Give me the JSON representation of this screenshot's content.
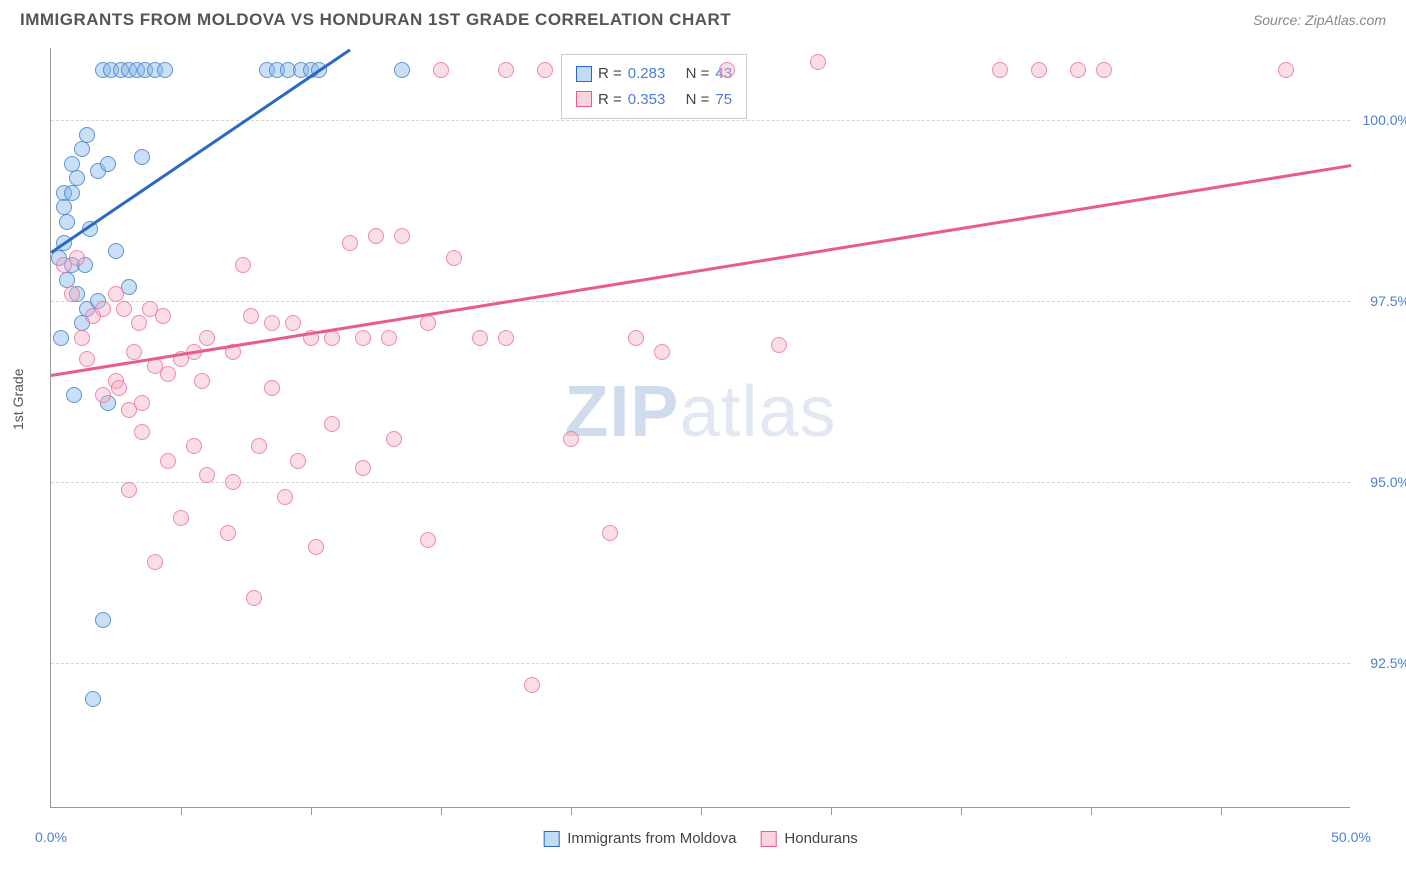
{
  "header": {
    "title": "IMMIGRANTS FROM MOLDOVA VS HONDURAN 1ST GRADE CORRELATION CHART",
    "source": "Source: ZipAtlas.com"
  },
  "watermark": {
    "part1": "ZIP",
    "part2": "atlas"
  },
  "chart": {
    "type": "scatter",
    "ylabel": "1st Grade",
    "xlim": [
      0,
      50
    ],
    "ylim": [
      90.5,
      101
    ],
    "background_color": "#ffffff",
    "grid_color": "#d5d5d5",
    "yticks": [
      {
        "v": 92.5,
        "label": "92.5%"
      },
      {
        "v": 95.0,
        "label": "95.0%"
      },
      {
        "v": 97.5,
        "label": "97.5%"
      },
      {
        "v": 100.0,
        "label": "100.0%"
      }
    ],
    "xticks_minor": [
      5,
      10,
      15,
      20,
      25,
      30,
      35,
      40,
      45
    ],
    "xticks_labeled": [
      {
        "v": 0,
        "label": "0.0%"
      },
      {
        "v": 50,
        "label": "50.0%"
      }
    ],
    "series": [
      {
        "name": "Immigrants from Moldova",
        "color_fill": "rgba(135,185,235,0.45)",
        "color_stroke": "#2b68c5",
        "marker_radius": 8,
        "trend": {
          "x1": 0,
          "y1": 98.2,
          "x2": 11.5,
          "y2": 101
        },
        "stats": {
          "R": "0.283",
          "N": "43"
        },
        "points": [
          [
            0.3,
            98.1
          ],
          [
            0.5,
            98.3
          ],
          [
            0.6,
            98.6
          ],
          [
            0.5,
            99.0
          ],
          [
            0.8,
            99.4
          ],
          [
            1.0,
            99.2
          ],
          [
            1.2,
            99.6
          ],
          [
            1.4,
            99.8
          ],
          [
            2.0,
            100.7
          ],
          [
            2.3,
            100.7
          ],
          [
            2.7,
            100.7
          ],
          [
            3.0,
            100.7
          ],
          [
            3.3,
            100.7
          ],
          [
            3.6,
            100.7
          ],
          [
            4.0,
            100.7
          ],
          [
            4.4,
            100.7
          ],
          [
            8.3,
            100.7
          ],
          [
            8.7,
            100.7
          ],
          [
            9.1,
            100.7
          ],
          [
            9.6,
            100.7
          ],
          [
            10.0,
            100.7
          ],
          [
            10.3,
            100.7
          ],
          [
            13.5,
            100.7
          ],
          [
            0.6,
            97.8
          ],
          [
            0.8,
            98.0
          ],
          [
            1.3,
            98.0
          ],
          [
            1.0,
            97.6
          ],
          [
            1.4,
            97.4
          ],
          [
            1.8,
            97.5
          ],
          [
            0.4,
            97.0
          ],
          [
            0.9,
            96.2
          ],
          [
            2.2,
            96.1
          ],
          [
            1.8,
            99.3
          ],
          [
            2.2,
            99.4
          ],
          [
            3.5,
            99.5
          ],
          [
            0.5,
            98.8
          ],
          [
            0.8,
            99.0
          ],
          [
            1.5,
            98.5
          ],
          [
            2.5,
            98.2
          ],
          [
            3.0,
            97.7
          ],
          [
            2.0,
            93.1
          ],
          [
            1.6,
            92.0
          ],
          [
            1.2,
            97.2
          ]
        ]
      },
      {
        "name": "Hondurans",
        "color_fill": "rgba(245,170,195,0.4)",
        "color_stroke": "#ea5b8a",
        "marker_radius": 8,
        "trend": {
          "x1": 0,
          "y1": 96.5,
          "x2": 50,
          "y2": 99.4
        },
        "stats": {
          "R": "0.353",
          "N": "75"
        },
        "points": [
          [
            0.5,
            98.0
          ],
          [
            1.0,
            98.1
          ],
          [
            1.6,
            97.3
          ],
          [
            2.0,
            97.4
          ],
          [
            2.5,
            97.6
          ],
          [
            2.8,
            97.4
          ],
          [
            3.4,
            97.2
          ],
          [
            3.8,
            97.4
          ],
          [
            4.3,
            97.3
          ],
          [
            1.4,
            96.7
          ],
          [
            2.0,
            96.2
          ],
          [
            2.5,
            96.4
          ],
          [
            3.0,
            96.0
          ],
          [
            3.5,
            96.1
          ],
          [
            4.5,
            96.5
          ],
          [
            5.5,
            96.8
          ],
          [
            6.0,
            97.0
          ],
          [
            7.0,
            96.8
          ],
          [
            7.7,
            97.3
          ],
          [
            7.4,
            98.0
          ],
          [
            8.5,
            97.2
          ],
          [
            9.3,
            97.2
          ],
          [
            10.0,
            97.0
          ],
          [
            10.8,
            97.0
          ],
          [
            11.5,
            98.3
          ],
          [
            12.5,
            98.4
          ],
          [
            13.5,
            98.4
          ],
          [
            12.0,
            97.0
          ],
          [
            13.0,
            97.0
          ],
          [
            14.5,
            97.2
          ],
          [
            15.5,
            98.1
          ],
          [
            16.5,
            97.0
          ],
          [
            17.5,
            97.0
          ],
          [
            22.5,
            97.0
          ],
          [
            23.5,
            96.8
          ],
          [
            28.0,
            96.9
          ],
          [
            15.0,
            100.7
          ],
          [
            17.5,
            100.7
          ],
          [
            19.0,
            100.7
          ],
          [
            26.0,
            100.7
          ],
          [
            29.5,
            100.8
          ],
          [
            36.5,
            100.7
          ],
          [
            38.0,
            100.7
          ],
          [
            39.5,
            100.7
          ],
          [
            40.5,
            100.7
          ],
          [
            47.5,
            100.7
          ],
          [
            3.5,
            95.7
          ],
          [
            4.5,
            95.3
          ],
          [
            5.5,
            95.5
          ],
          [
            6.0,
            95.1
          ],
          [
            7.0,
            95.0
          ],
          [
            8.0,
            95.5
          ],
          [
            9.5,
            95.3
          ],
          [
            10.8,
            95.8
          ],
          [
            12.0,
            95.2
          ],
          [
            13.2,
            95.6
          ],
          [
            20.0,
            95.6
          ],
          [
            21.5,
            94.3
          ],
          [
            3.0,
            94.9
          ],
          [
            5.0,
            94.5
          ],
          [
            6.8,
            94.3
          ],
          [
            9.0,
            94.8
          ],
          [
            10.2,
            94.1
          ],
          [
            14.5,
            94.2
          ],
          [
            4.0,
            93.9
          ],
          [
            7.8,
            93.4
          ],
          [
            18.5,
            92.2
          ],
          [
            2.6,
            96.3
          ],
          [
            3.2,
            96.8
          ],
          [
            4.0,
            96.6
          ],
          [
            5.0,
            96.7
          ],
          [
            5.8,
            96.4
          ],
          [
            8.5,
            96.3
          ],
          [
            0.8,
            97.6
          ],
          [
            1.2,
            97.0
          ]
        ]
      }
    ]
  }
}
